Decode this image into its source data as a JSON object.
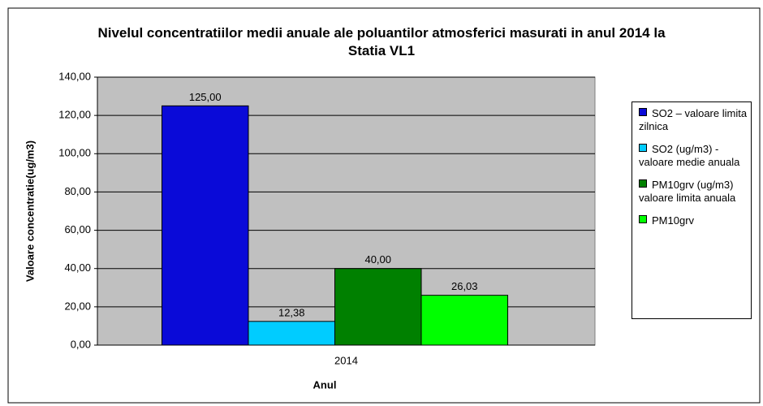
{
  "chart_data": {
    "type": "bar",
    "title": "Nivelul concentratiilor medii anuale ale poluantilor atmosferici masurati in anul 2014 la Statia VL1",
    "x_label": "Anul",
    "y_label": "Valoare concentratie(ug/m3)",
    "categories": [
      "2014"
    ],
    "series": [
      {
        "name": "SO2 – valoare limita zilnica",
        "color": "#0a0ad8",
        "values": [
          125
        ],
        "value_labels": [
          "125,00"
        ]
      },
      {
        "name": "SO2 (ug/m3) - valoare medie anuala",
        "color": "#00ccff",
        "values": [
          12.38
        ],
        "value_labels": [
          "12,38"
        ]
      },
      {
        "name": "PM10grv (ug/m3) valoare limita anuala",
        "color": "#008000",
        "values": [
          40
        ],
        "value_labels": [
          "40,00"
        ]
      },
      {
        "name": "PM10grv",
        "color": "#00ff00",
        "values": [
          26.03
        ],
        "value_labels": [
          "26,03"
        ]
      }
    ],
    "ylim": [
      0,
      140
    ],
    "yticks": [
      {
        "value": 0,
        "label": "0,00"
      },
      {
        "value": 20,
        "label": "20,00"
      },
      {
        "value": 40,
        "label": "40,00"
      },
      {
        "value": 60,
        "label": "60,00"
      },
      {
        "value": 80,
        "label": "80,00"
      },
      {
        "value": 100,
        "label": "100,00"
      },
      {
        "value": 120,
        "label": "120,00"
      },
      {
        "value": 140,
        "label": "140,00"
      }
    ],
    "grid": true,
    "plot_background": "#c0c0c0",
    "legend": "right"
  }
}
